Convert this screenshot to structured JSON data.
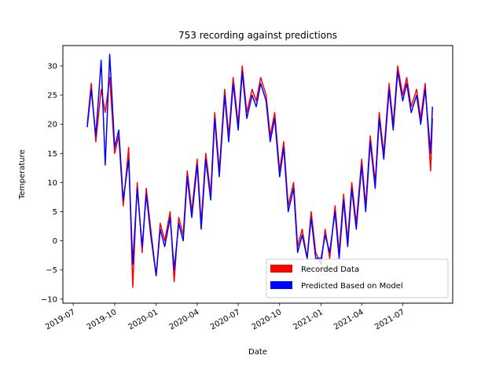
{
  "chart_data": {
    "type": "line",
    "title": "753 recording against predictions",
    "xlabel": "Date",
    "ylabel": "Temperature",
    "xlim": [
      "2019-06-08",
      "2021-10-20"
    ],
    "ylim": [
      -10.7,
      33.5
    ],
    "x_ticks": [
      "2019-07",
      "2019-10",
      "2020-01",
      "2020-04",
      "2020-07",
      "2020-10",
      "2021-01",
      "2021-04",
      "2021-07"
    ],
    "x_tick_labels": [
      "2019-07",
      "2019-10",
      "2020-01",
      "2020-04",
      "2020-07",
      "2020-10",
      "2021-01",
      "2021-04",
      "2021-07"
    ],
    "y_ticks": [
      -10,
      -5,
      0,
      5,
      10,
      15,
      20,
      25,
      30
    ],
    "y_tick_labels": [
      "−10",
      "−5",
      "0",
      "5",
      "10",
      "15",
      "20",
      "25",
      "30"
    ],
    "grid": false,
    "legend_position": "bottom-right",
    "series": [
      {
        "name": "Recorded Data",
        "color": "#ff0000",
        "x": [
          "2019-08-01",
          "2019-08-10",
          "2019-08-20",
          "2019-09-01",
          "2019-09-10",
          "2019-09-20",
          "2019-10-01",
          "2019-10-10",
          "2019-10-20",
          "2019-11-01",
          "2019-11-10",
          "2019-11-20",
          "2019-12-01",
          "2019-12-10",
          "2019-12-20",
          "2020-01-01",
          "2020-01-10",
          "2020-01-20",
          "2020-02-01",
          "2020-02-10",
          "2020-02-20",
          "2020-03-01",
          "2020-03-10",
          "2020-03-20",
          "2020-04-01",
          "2020-04-10",
          "2020-04-20",
          "2020-05-01",
          "2020-05-10",
          "2020-05-20",
          "2020-06-01",
          "2020-06-10",
          "2020-06-20",
          "2020-07-01",
          "2020-07-10",
          "2020-07-20",
          "2020-08-01",
          "2020-08-10",
          "2020-08-20",
          "2020-09-01",
          "2020-09-10",
          "2020-09-20",
          "2020-10-01",
          "2020-10-10",
          "2020-10-20",
          "2020-11-01",
          "2020-11-10",
          "2020-11-20",
          "2020-12-01",
          "2020-12-10",
          "2020-12-20",
          "2021-01-01",
          "2021-01-10",
          "2021-01-20",
          "2021-02-01",
          "2021-02-10",
          "2021-02-20",
          "2021-03-01",
          "2021-03-10",
          "2021-03-20",
          "2021-04-01",
          "2021-04-10",
          "2021-04-20",
          "2021-05-01",
          "2021-05-10",
          "2021-05-20",
          "2021-06-01",
          "2021-06-10",
          "2021-06-20",
          "2021-07-01",
          "2021-07-10",
          "2021-07-20",
          "2021-08-01",
          "2021-08-10",
          "2021-08-20",
          "2021-09-01",
          "2021-09-05"
        ],
        "values": [
          20,
          27,
          17,
          26,
          22,
          28,
          15,
          18,
          6,
          16,
          -8,
          10,
          -2,
          9,
          2,
          -6,
          3,
          0,
          5,
          -7,
          4,
          1,
          12,
          5,
          14,
          3,
          15,
          8,
          22,
          12,
          26,
          18,
          28,
          20,
          30,
          22,
          26,
          24,
          28,
          25,
          18,
          22,
          12,
          17,
          6,
          10,
          -1,
          2,
          -3,
          5,
          -2,
          -4,
          2,
          -3,
          6,
          -2,
          8,
          0,
          10,
          3,
          14,
          6,
          18,
          10,
          22,
          15,
          27,
          20,
          30,
          25,
          28,
          23,
          26,
          21,
          27,
          12,
          21
        ]
      },
      {
        "name": "Predicted Based on Model",
        "color": "#0000ff",
        "x": [
          "2019-08-01",
          "2019-08-10",
          "2019-08-20",
          "2019-09-01",
          "2019-09-10",
          "2019-09-20",
          "2019-10-01",
          "2019-10-10",
          "2019-10-20",
          "2019-11-01",
          "2019-11-10",
          "2019-11-20",
          "2019-12-01",
          "2019-12-10",
          "2019-12-20",
          "2020-01-01",
          "2020-01-10",
          "2020-01-20",
          "2020-02-01",
          "2020-02-10",
          "2020-02-20",
          "2020-03-01",
          "2020-03-10",
          "2020-03-20",
          "2020-04-01",
          "2020-04-10",
          "2020-04-20",
          "2020-05-01",
          "2020-05-10",
          "2020-05-20",
          "2020-06-01",
          "2020-06-10",
          "2020-06-20",
          "2020-07-01",
          "2020-07-10",
          "2020-07-20",
          "2020-08-01",
          "2020-08-10",
          "2020-08-20",
          "2020-09-01",
          "2020-09-10",
          "2020-09-20",
          "2020-10-01",
          "2020-10-10",
          "2020-10-20",
          "2020-11-01",
          "2020-11-10",
          "2020-11-20",
          "2020-12-01",
          "2020-12-10",
          "2020-12-20",
          "2021-01-01",
          "2021-01-10",
          "2021-01-20",
          "2021-02-01",
          "2021-02-10",
          "2021-02-20",
          "2021-03-01",
          "2021-03-10",
          "2021-03-20",
          "2021-04-01",
          "2021-04-10",
          "2021-04-20",
          "2021-05-01",
          "2021-05-10",
          "2021-05-20",
          "2021-06-01",
          "2021-06-10",
          "2021-06-20",
          "2021-07-01",
          "2021-07-10",
          "2021-07-20",
          "2021-08-01",
          "2021-08-10",
          "2021-08-20",
          "2021-09-01",
          "2021-09-05"
        ],
        "values": [
          19.5,
          26,
          18,
          31,
          13,
          32,
          16,
          19,
          7,
          14,
          -4,
          9,
          -1,
          8,
          1,
          -6,
          2,
          -1,
          4,
          -5,
          3,
          0,
          11,
          4,
          13,
          2,
          14,
          7,
          21,
          11,
          25,
          17,
          27,
          19,
          29,
          21,
          25,
          23,
          27,
          24,
          17,
          21,
          11,
          16,
          5,
          9,
          -2,
          1,
          -3,
          4,
          -3,
          -3,
          1,
          -2,
          5,
          -3,
          7,
          -1,
          9,
          2,
          13,
          5,
          17,
          9,
          21,
          14,
          26,
          19,
          29,
          24,
          27,
          22,
          25,
          20,
          26,
          15,
          23
        ]
      }
    ]
  }
}
